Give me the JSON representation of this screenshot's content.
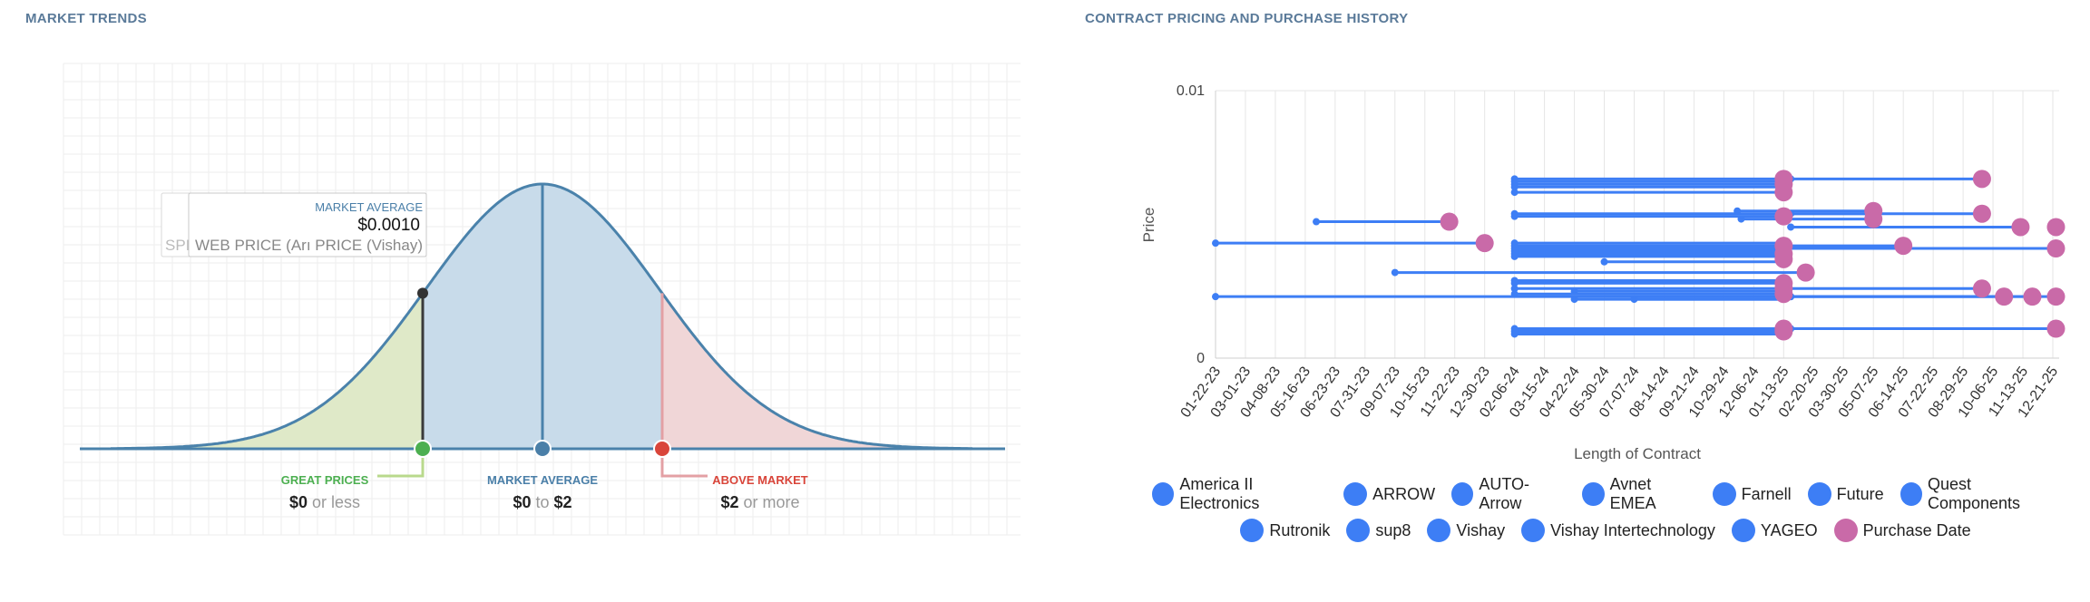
{
  "market_trends": {
    "title": "MARKET TRENDS",
    "tooltip": {
      "label": "MARKET AVERAGE",
      "value": "$0.0010",
      "sub_back": "SPI",
      "sub_front": "WEB PRICE (Arı PRICE (Vishay)"
    },
    "segments": [
      {
        "label": "GREAT PRICES",
        "low": "$0",
        "mid": "or less",
        "high": ""
      },
      {
        "label": "MARKET AVERAGE",
        "low": "$0",
        "mid": "to",
        "high": "$2"
      },
      {
        "label": "ABOVE MARKET",
        "low": "$2",
        "mid": "or more",
        "high": ""
      }
    ],
    "colors": {
      "curve": "#4a82ab",
      "great": "#4caf50",
      "average": "#4a7fa8",
      "above": "#d9453a",
      "great_fill": "#dfe9c8",
      "average_fill": "#c8dbea",
      "above_fill": "#f0d6d7"
    }
  },
  "contract_pricing": {
    "title": "CONTRACT PRICING AND PURCHASE HISTORY",
    "legend_rows": [
      [
        {
          "name": "America II Electronics",
          "color": "#3d7ef5"
        },
        {
          "name": "ARROW",
          "color": "#3d7ef5"
        },
        {
          "name": "AUTO-Arrow",
          "color": "#3d7ef5"
        },
        {
          "name": "Avnet EMEA",
          "color": "#3d7ef5"
        },
        {
          "name": "Farnell",
          "color": "#3d7ef5"
        },
        {
          "name": "Future",
          "color": "#3d7ef5"
        },
        {
          "name": "Quest Components",
          "color": "#3d7ef5"
        }
      ],
      [
        {
          "name": "Rutronik",
          "color": "#3d7ef5"
        },
        {
          "name": "sup8",
          "color": "#3d7ef5"
        },
        {
          "name": "Vishay",
          "color": "#3d7ef5"
        },
        {
          "name": "Vishay Intertechnology",
          "color": "#3d7ef5"
        },
        {
          "name": "YAGEO",
          "color": "#3d7ef5"
        },
        {
          "name": "Purchase Date",
          "color": "#c96aa8"
        }
      ]
    ]
  },
  "chart_data": [
    {
      "type": "area",
      "title": "MARKET TRENDS",
      "annotations": [
        "GREAT PRICES",
        "MARKET AVERAGE",
        "ABOVE MARKET"
      ],
      "tooltip_value": "$0.0010"
    },
    {
      "type": "scatter",
      "title": "CONTRACT PRICING AND PURCHASE HISTORY",
      "xlabel": "Length of Contract",
      "ylabel": "Price",
      "y_tick_labels": [
        "0.01",
        "0"
      ],
      "ylim": [
        0,
        0.01
      ],
      "x_tick_labels": [
        "01-22-23",
        "03-01-23",
        "04-08-23",
        "05-16-23",
        "06-23-23",
        "07-31-23",
        "09-07-23",
        "10-15-23",
        "11-22-23",
        "12-30-23",
        "02-06-24",
        "03-15-24",
        "04-22-24",
        "05-30-24",
        "07-07-24",
        "08-14-24",
        "09-21-24",
        "10-29-24",
        "12-06-24",
        "01-13-25",
        "02-20-25",
        "03-30-25",
        "05-07-25",
        "06-14-25",
        "07-22-25",
        "08-29-25",
        "10-06-25",
        "11-13-25",
        "12-21-25"
      ],
      "xlim": [
        "01-22-23",
        "12-21-25"
      ],
      "series_segments": [
        {
          "start": "02-06-24",
          "end": "01-13-25",
          "price": 0.0067
        },
        {
          "start": "02-06-24",
          "end": "01-13-25",
          "price": 0.0066
        },
        {
          "start": "02-06-24",
          "end": "01-13-25",
          "price": 0.0065
        },
        {
          "start": "02-06-24",
          "end": "01-13-25",
          "price": 0.0064
        },
        {
          "start": "02-06-24",
          "end": "01-13-25",
          "price": 0.0062
        },
        {
          "start": "01-22-25",
          "end": "09-22-25",
          "price": 0.0067
        },
        {
          "start": "02-06-24",
          "end": "05-07-25",
          "price": 0.0054
        },
        {
          "start": "11-15-24",
          "end": "05-07-25",
          "price": 0.0055
        },
        {
          "start": "02-06-24",
          "end": "01-13-25",
          "price": 0.0053
        },
        {
          "start": "11-20-24",
          "end": "05-07-25",
          "price": 0.0052
        },
        {
          "start": "01-22-25",
          "end": "09-22-25",
          "price": 0.0054
        },
        {
          "start": "05-30-23",
          "end": "11-15-23",
          "price": 0.0051
        },
        {
          "start": "01-22-25",
          "end": "11-10-25",
          "price": 0.0049
        },
        {
          "start": "01-22-23",
          "end": "12-30-23",
          "price": 0.0043
        },
        {
          "start": "02-06-24",
          "end": "01-13-25",
          "price": 0.0043
        },
        {
          "start": "02-06-24",
          "end": "06-14-25",
          "price": 0.0042
        },
        {
          "start": "02-06-24",
          "end": "12-25-25",
          "price": 0.0041
        },
        {
          "start": "02-06-24",
          "end": "01-13-25",
          "price": 0.004
        },
        {
          "start": "02-06-24",
          "end": "01-13-25",
          "price": 0.0039
        },
        {
          "start": "02-06-24",
          "end": "01-13-25",
          "price": 0.0038
        },
        {
          "start": "05-30-24",
          "end": "01-13-25",
          "price": 0.0036
        },
        {
          "start": "09-07-23",
          "end": "02-10-25",
          "price": 0.0032
        },
        {
          "start": "02-06-24",
          "end": "01-13-25",
          "price": 0.0029
        },
        {
          "start": "02-06-24",
          "end": "01-13-25",
          "price": 0.0028
        },
        {
          "start": "02-06-24",
          "end": "09-22-25",
          "price": 0.0026
        },
        {
          "start": "04-22-24",
          "end": "01-13-25",
          "price": 0.0025
        },
        {
          "start": "02-06-24",
          "end": "01-13-25",
          "price": 0.0024
        },
        {
          "start": "01-22-23",
          "end": "01-13-25",
          "price": 0.0023
        },
        {
          "start": "04-22-24",
          "end": "01-13-25",
          "price": 0.0022
        },
        {
          "start": "07-07-24",
          "end": "01-13-25",
          "price": 0.0022
        },
        {
          "start": "01-22-25",
          "end": "10-06-25",
          "price": 0.0023
        },
        {
          "start": "01-22-25",
          "end": "11-13-25",
          "price": 0.0023
        },
        {
          "start": "01-22-25",
          "end": "12-25-25",
          "price": 0.0023
        },
        {
          "start": "02-06-24",
          "end": "01-13-25",
          "price": 0.0011
        },
        {
          "start": "02-06-24",
          "end": "01-13-25",
          "price": 0.001
        },
        {
          "start": "02-06-24",
          "end": "01-13-25",
          "price": 0.0009
        },
        {
          "start": "01-22-25",
          "end": "12-25-25",
          "price": 0.0011
        }
      ],
      "purchase_dates": [
        {
          "date": "01-13-25",
          "price": 0.0067
        },
        {
          "date": "01-13-25",
          "price": 0.0065
        },
        {
          "date": "01-13-25",
          "price": 0.0062
        },
        {
          "date": "09-22-25",
          "price": 0.0067
        },
        {
          "date": "05-07-25",
          "price": 0.0055
        },
        {
          "date": "05-07-25",
          "price": 0.0052
        },
        {
          "date": "01-13-25",
          "price": 0.0053
        },
        {
          "date": "09-22-25",
          "price": 0.0054
        },
        {
          "date": "11-15-23",
          "price": 0.0051
        },
        {
          "date": "11-10-25",
          "price": 0.0049
        },
        {
          "date": "12-25-25",
          "price": 0.0049
        },
        {
          "date": "12-30-23",
          "price": 0.0043
        },
        {
          "date": "01-13-25",
          "price": 0.0042
        },
        {
          "date": "06-14-25",
          "price": 0.0042
        },
        {
          "date": "12-25-25",
          "price": 0.0041
        },
        {
          "date": "01-13-25",
          "price": 0.0039
        },
        {
          "date": "01-13-25",
          "price": 0.0037
        },
        {
          "date": "02-10-25",
          "price": 0.0032
        },
        {
          "date": "01-13-25",
          "price": 0.0028
        },
        {
          "date": "01-13-25",
          "price": 0.0026
        },
        {
          "date": "01-13-25",
          "price": 0.0024
        },
        {
          "date": "09-22-25",
          "price": 0.0026
        },
        {
          "date": "10-20-25",
          "price": 0.0023
        },
        {
          "date": "11-25-25",
          "price": 0.0023
        },
        {
          "date": "12-25-25",
          "price": 0.0023
        },
        {
          "date": "01-13-25",
          "price": 0.0011
        },
        {
          "date": "01-13-25",
          "price": 0.001
        },
        {
          "date": "12-25-25",
          "price": 0.0011
        }
      ]
    }
  ]
}
